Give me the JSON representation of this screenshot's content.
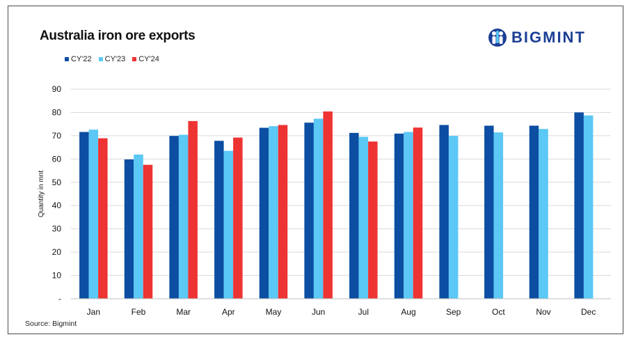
{
  "chart_data": {
    "type": "bar",
    "title": "Australia iron ore exports",
    "ylabel": "Quantity in mnt",
    "xlabel": "",
    "ylim": [
      0,
      90
    ],
    "yticks": [
      "-",
      "10",
      "20",
      "30",
      "40",
      "50",
      "60",
      "70",
      "80",
      "90"
    ],
    "grid": true,
    "legend_position": "top-left",
    "categories": [
      "Jan",
      "Feb",
      "Mar",
      "Apr",
      "May",
      "Jun",
      "Jul",
      "Aug",
      "Sep",
      "Oct",
      "Nov",
      "Dec"
    ],
    "series": [
      {
        "name": "CY'22",
        "color": "#0b4ea2",
        "values": [
          71.6,
          59.8,
          69.9,
          67.8,
          73.4,
          75.6,
          71.2,
          70.9,
          74.6,
          74.3,
          74.3,
          80.0
        ]
      },
      {
        "name": "CY'23",
        "color": "#5bc8f5",
        "values": [
          72.6,
          61.9,
          70.4,
          63.5,
          74.1,
          77.3,
          69.5,
          71.6,
          69.9,
          71.4,
          72.9,
          78.7
        ]
      },
      {
        "name": "CY'24",
        "color": "#ee3333",
        "values": [
          68.9,
          57.5,
          76.3,
          69.2,
          74.6,
          80.4,
          67.5,
          73.5,
          null,
          null,
          null,
          null
        ]
      }
    ]
  },
  "brand": {
    "name": "BIGMINT",
    "color": "#1c3f95"
  },
  "source": "Source: Bigmint"
}
